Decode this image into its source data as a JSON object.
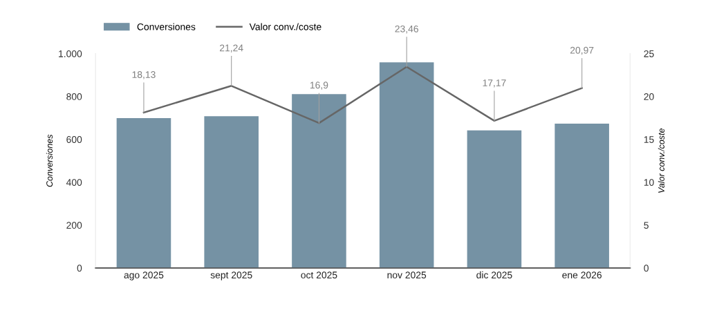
{
  "chart_data": {
    "type": "bar",
    "categories": [
      "ago 2025",
      "sept 2025",
      "oct 2025",
      "nov 2025",
      "dic 2025",
      "ene 2026"
    ],
    "series": [
      {
        "name": "Conversiones",
        "color": "#7592a4",
        "values": [
          699,
          708,
          811,
          959,
          642,
          673
        ]
      },
      {
        "name": "Valor conv./coste",
        "type": "line",
        "axis": "y2",
        "color": "#666666",
        "values": [
          18.13,
          21.24,
          16.9,
          23.46,
          17.17,
          20.97
        ],
        "value_labels": [
          "18,13",
          "21,24",
          "16,9",
          "23,46",
          "17,17",
          "20,97"
        ]
      }
    ],
    "ylabel": "Conversiones",
    "y2label": "Valor conv./coste",
    "ylim": [
      0,
      1000
    ],
    "yticks": [
      0,
      200,
      400,
      600,
      800,
      {
        "value": 1000,
        "label": "1.000"
      }
    ],
    "y2lim": [
      0,
      25
    ],
    "y2ticks": [
      0,
      5,
      10,
      15,
      20,
      25
    ],
    "grid": false,
    "legend": "top left",
    "marker": "none",
    "line_style": "solid"
  }
}
